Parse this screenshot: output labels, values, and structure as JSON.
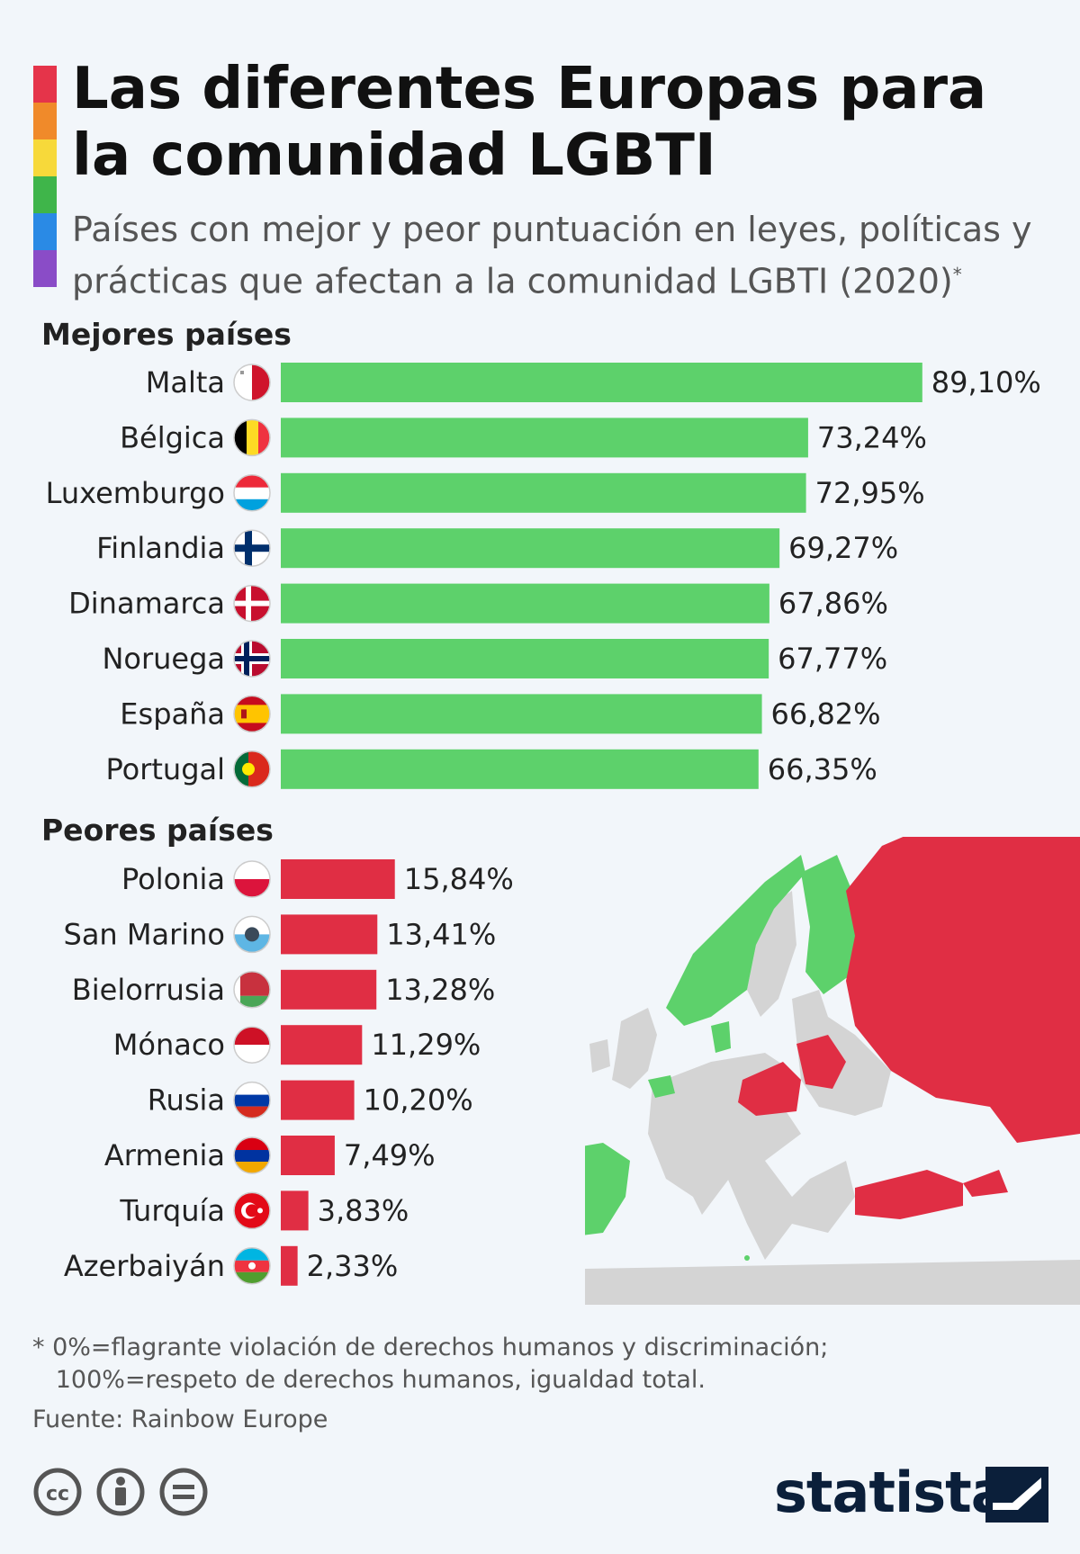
{
  "header": {
    "title": "Las diferentes Europas para la comunidad LGBTI",
    "subtitle": "Países con mejor y peor puntuación en leyes, políticas y prácticas que afectan a la comunidad LGBTI (2020)",
    "subtitle_mark": "*"
  },
  "rainbow_colors": [
    "#e5344a",
    "#f08a2a",
    "#f7d93a",
    "#3fb54a",
    "#2a8ae5",
    "#8a4cc7"
  ],
  "chart_data": [
    {
      "type": "bar",
      "orientation": "horizontal",
      "title": "Mejores países",
      "categories": [
        "Malta",
        "Bélgica",
        "Luxemburgo",
        "Finlandia",
        "Dinamarca",
        "Noruega",
        "España",
        "Portugal"
      ],
      "values": [
        89.1,
        73.24,
        72.95,
        69.27,
        67.86,
        67.77,
        66.82,
        66.35
      ],
      "labels": [
        "89,10%",
        "73,24%",
        "72,95%",
        "69,27%",
        "67,86%",
        "67,77%",
        "66,82%",
        "66,35%"
      ],
      "color": "#5dd16b",
      "xlim": [
        0,
        100
      ]
    },
    {
      "type": "bar",
      "orientation": "horizontal",
      "title": "Peores países",
      "categories": [
        "Polonia",
        "San Marino",
        "Bielorrusia",
        "Mónaco",
        "Rusia",
        "Armenia",
        "Turquía",
        "Azerbaiyán"
      ],
      "values": [
        15.84,
        13.41,
        13.28,
        11.29,
        10.2,
        7.49,
        3.83,
        2.33
      ],
      "labels": [
        "15,84%",
        "13,41%",
        "13,28%",
        "11,29%",
        "10,20%",
        "7,49%",
        "3,83%",
        "2,33%"
      ],
      "color": "#e02e44",
      "xlim": [
        0,
        100
      ]
    }
  ],
  "flags": {
    "best": [
      "malta-flag-icon",
      "belgium-flag-icon",
      "luxembourg-flag-icon",
      "finland-flag-icon",
      "denmark-flag-icon",
      "norway-flag-icon",
      "spain-flag-icon",
      "portugal-flag-icon"
    ],
    "worst": [
      "poland-flag-icon",
      "san-marino-flag-icon",
      "belarus-flag-icon",
      "monaco-flag-icon",
      "russia-flag-icon",
      "armenia-flag-icon",
      "turkey-flag-icon",
      "azerbaijan-flag-icon"
    ]
  },
  "map": {
    "icon": "europe-map-icon",
    "colors": {
      "best": "#5dd16b",
      "worst": "#e02e44",
      "other": "#d4d4d4"
    }
  },
  "footer": {
    "footnote_line1": "* 0%=flagrante violación de derechos humanos y discriminación;",
    "footnote_line2": "   100%=respeto de derechos humanos, igualdad total.",
    "source": "Fuente: Rainbow Europe",
    "brand": "statista",
    "license_icons": [
      "cc-icon",
      "by-icon",
      "nd-icon"
    ]
  }
}
